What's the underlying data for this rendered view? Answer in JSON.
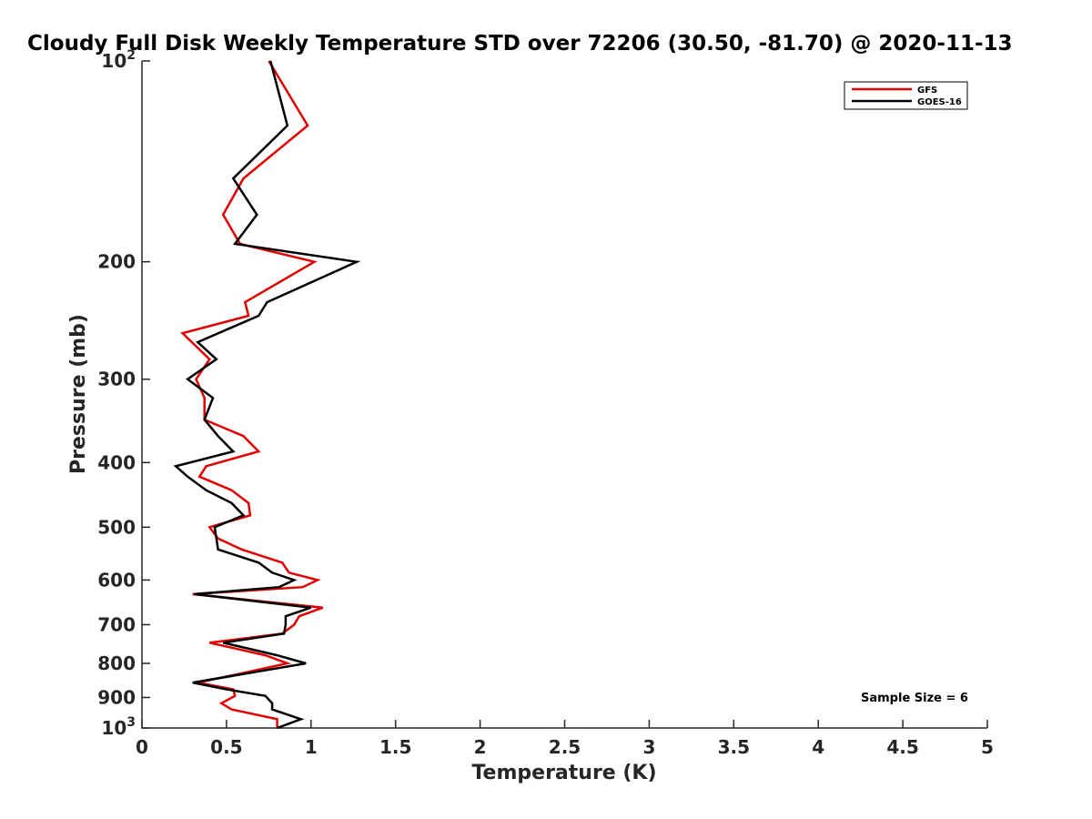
{
  "chart_data": {
    "type": "line",
    "title": "Cloudy Full Disk Weekly Temperature STD over 72206 (30.50, -81.70) @ 2020-11-13",
    "xlabel": "Temperature (K)",
    "ylabel": "Pressure (mb)",
    "xlim": [
      0,
      5
    ],
    "ylim": [
      100,
      1000
    ],
    "y_scale": "log",
    "y_reversed": true,
    "x_ticks": [
      0,
      0.5,
      1,
      1.5,
      2,
      2.5,
      3,
      3.5,
      4,
      4.5,
      5
    ],
    "x_tick_labels": [
      "0",
      "0.5",
      "1",
      "1.5",
      "2",
      "2.5",
      "3",
      "3.5",
      "4",
      "4.5",
      "5"
    ],
    "y_ticks": [
      100,
      200,
      300,
      400,
      500,
      600,
      700,
      800,
      900,
      1000
    ],
    "y_tick_labels": [
      {
        "base": "10",
        "exp": "2"
      },
      {
        "base": "200",
        "exp": ""
      },
      {
        "base": "300",
        "exp": ""
      },
      {
        "base": "400",
        "exp": ""
      },
      {
        "base": "500",
        "exp": ""
      },
      {
        "base": "600",
        "exp": ""
      },
      {
        "base": "700",
        "exp": ""
      },
      {
        "base": "800",
        "exp": ""
      },
      {
        "base": "900",
        "exp": ""
      },
      {
        "base": "10",
        "exp": "3"
      }
    ],
    "grid": false,
    "legend_position": "top-right",
    "annotation": "Sample Size = 6",
    "series": [
      {
        "name": "GFS",
        "color": "#e00000",
        "points": [
          [
            0.75,
            100
          ],
          [
            0.98,
            125
          ],
          [
            0.6,
            150
          ],
          [
            0.48,
            170
          ],
          [
            0.58,
            188
          ],
          [
            1.02,
            200
          ],
          [
            0.61,
            230
          ],
          [
            0.63,
            241
          ],
          [
            0.24,
            256
          ],
          [
            0.4,
            280
          ],
          [
            0.32,
            300
          ],
          [
            0.37,
            320
          ],
          [
            0.37,
            345
          ],
          [
            0.6,
            365
          ],
          [
            0.69,
            385
          ],
          [
            0.38,
            405
          ],
          [
            0.34,
            420
          ],
          [
            0.53,
            440
          ],
          [
            0.63,
            460
          ],
          [
            0.64,
            480
          ],
          [
            0.4,
            500
          ],
          [
            0.45,
            520
          ],
          [
            0.59,
            540
          ],
          [
            0.83,
            565
          ],
          [
            0.87,
            585
          ],
          [
            1.04,
            600
          ],
          [
            0.95,
            615
          ],
          [
            0.3,
            630
          ],
          [
            1.07,
            660
          ],
          [
            0.93,
            680
          ],
          [
            0.9,
            700
          ],
          [
            0.83,
            722
          ],
          [
            0.4,
            745
          ],
          [
            0.73,
            778
          ],
          [
            0.86,
            800
          ],
          [
            0.57,
            830
          ],
          [
            0.33,
            855
          ],
          [
            0.54,
            875
          ],
          [
            0.55,
            895
          ],
          [
            0.47,
            918
          ],
          [
            0.53,
            938
          ],
          [
            0.8,
            970
          ],
          [
            0.8,
            1000
          ]
        ]
      },
      {
        "name": "GOES-16",
        "color": "#000000",
        "points": [
          [
            0.76,
            100
          ],
          [
            0.86,
            125
          ],
          [
            0.54,
            150
          ],
          [
            0.68,
            170
          ],
          [
            0.55,
            188
          ],
          [
            1.27,
            200
          ],
          [
            0.74,
            230
          ],
          [
            0.69,
            241
          ],
          [
            0.33,
            264
          ],
          [
            0.44,
            280
          ],
          [
            0.27,
            300
          ],
          [
            0.42,
            320
          ],
          [
            0.37,
            345
          ],
          [
            0.45,
            365
          ],
          [
            0.54,
            385
          ],
          [
            0.2,
            405
          ],
          [
            0.27,
            420
          ],
          [
            0.38,
            440
          ],
          [
            0.53,
            460
          ],
          [
            0.6,
            480
          ],
          [
            0.43,
            500
          ],
          [
            0.44,
            520
          ],
          [
            0.45,
            540
          ],
          [
            0.69,
            565
          ],
          [
            0.77,
            585
          ],
          [
            0.9,
            600
          ],
          [
            0.81,
            615
          ],
          [
            0.31,
            630
          ],
          [
            1.0,
            660
          ],
          [
            0.85,
            680
          ],
          [
            0.85,
            700
          ],
          [
            0.84,
            722
          ],
          [
            0.48,
            745
          ],
          [
            0.8,
            778
          ],
          [
            0.97,
            800
          ],
          [
            0.6,
            830
          ],
          [
            0.3,
            855
          ],
          [
            0.5,
            875
          ],
          [
            0.73,
            895
          ],
          [
            0.77,
            918
          ],
          [
            0.77,
            938
          ],
          [
            0.94,
            970
          ],
          [
            0.8,
            1000
          ]
        ]
      }
    ]
  }
}
